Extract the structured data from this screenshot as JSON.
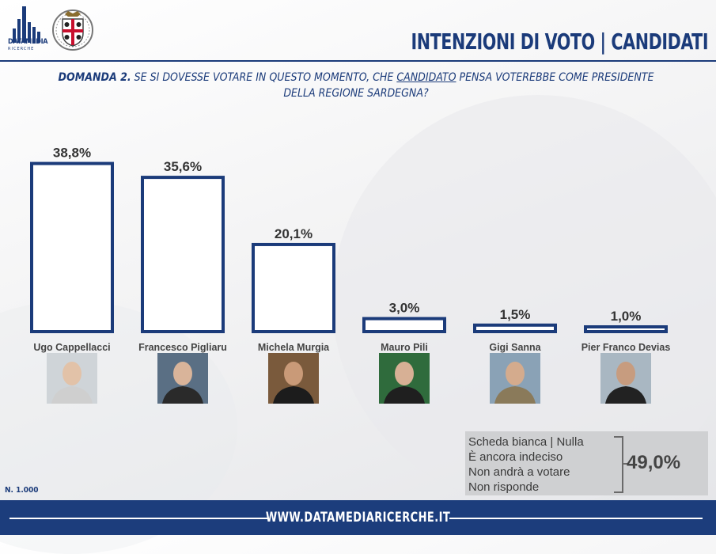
{
  "header": {
    "logo_text": "DATAMEDIA",
    "logo_sub": "RICERCHE",
    "title": "INTENZIONI DI VOTO | CANDIDATI"
  },
  "question": {
    "label": "DOMANDA 2.",
    "text_before": "SE SI DOVESSE VOTARE IN QUESTO MOMENTO, CHE",
    "underlined": "CANDIDATO",
    "text_after": "PENSA VOTEREBBE COME PRESIDENTE DELLA REGIONE SARDEGNA?"
  },
  "chart_data": {
    "type": "bar",
    "categories": [
      "Ugo Cappellacci",
      "Francesco Pigliaru",
      "Michela Murgia",
      "Mauro Pili",
      "Gigi Sanna",
      "Pier Franco Devias"
    ],
    "values": [
      38.8,
      35.6,
      20.1,
      3.0,
      1.5,
      1.0
    ],
    "value_labels": [
      "38,8%",
      "35,6%",
      "20,1%",
      "3,0%",
      "1,5%",
      "1,0%"
    ],
    "ylim": [
      0,
      40
    ],
    "grid": false,
    "colors": {
      "bar_stroke": "#1b3b7a",
      "bar_fill": "#ffffff"
    }
  },
  "summary": {
    "lines": [
      "Scheda bianca | Nulla",
      "È ancora indeciso",
      "Non andrà a votare",
      "Non risponde"
    ],
    "total": "49,0%"
  },
  "sample": "N. 1.000",
  "footer": {
    "url": "WWW.DATAMEDIARICERCHE.IT"
  }
}
